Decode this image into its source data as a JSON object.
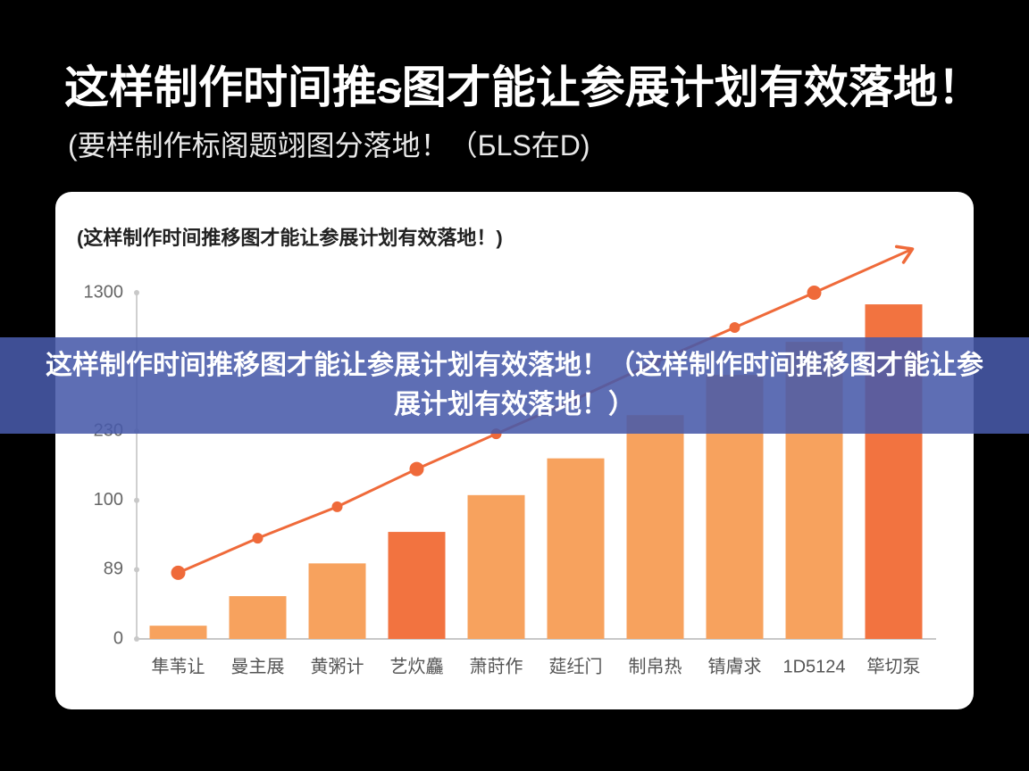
{
  "page": {
    "title": "这样制作时间推ᵴ图才能让参展计划有效落地！",
    "subtitle": "(要样制作标阁题翊图分落地！（БLS在D)"
  },
  "banner": {
    "text": "这样制作时间推移图才能让参展计划有效落地！（这样制作时间推移图才能让参展计划有效落地！）"
  },
  "chart_data": {
    "type": "bar",
    "title": "(这样制作时间推移图才能让参展计划有效落地！)",
    "categories": [
      "隼苇让",
      "曼主展",
      "黄粥计",
      "艺炊麤",
      "萧莳作",
      "莚纴门",
      "制帛热",
      "锖膚求",
      "1D5124",
      "筚切泵"
    ],
    "values": [
      17,
      55,
      90,
      95,
      110,
      179,
      354,
      665,
      920,
      1210
    ],
    "colors": [
      "#f7a25e",
      "#f7a25e",
      "#f7a25e",
      "#f27340",
      "#f7a25e",
      "#f7a25e",
      "#f7a25e",
      "#f7a25e",
      "#f7a25e",
      "#f27340"
    ],
    "line": {
      "values": [
        85,
        94,
        99,
        159,
        225,
        478,
        762,
        1031,
        1300,
        null
      ],
      "color": "#ef6a3a"
    },
    "ylim": [
      0,
      1300
    ],
    "yticks": [
      0,
      89,
      100,
      230,
      1300
    ]
  }
}
